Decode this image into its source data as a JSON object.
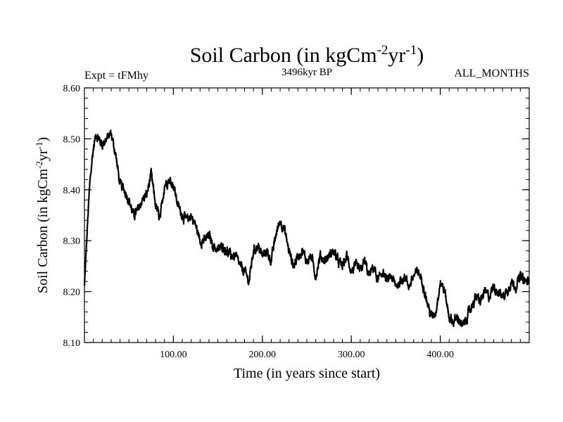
{
  "chart_data": {
    "type": "line",
    "title": "Soil Carbon (in kgCm",
    "title_sup1": "-2",
    "title_mid": "yr",
    "title_sup2": "-1",
    "title_end": ")",
    "subtitle_left": "Expt = tFMhy",
    "subtitle_center": "3496kyr BP",
    "subtitle_right": "ALL_MONTHS",
    "xlabel": "Time (in years since start)",
    "ylabel": "Soil Carbon (in kgCm",
    "ylabel_sup1": "-2",
    "ylabel_mid": "yr",
    "ylabel_sup2": "-1",
    "ylabel_end": ")",
    "xlim": [
      0,
      500
    ],
    "ylim": [
      8.1,
      8.6
    ],
    "xticks": [
      100,
      200,
      300,
      400
    ],
    "xtick_labels": [
      "100.00",
      "200.00",
      "300.00",
      "400.00"
    ],
    "yticks": [
      8.1,
      8.2,
      8.3,
      8.4,
      8.5,
      8.6
    ],
    "ytick_labels": [
      "8.10",
      "8.20",
      "8.30",
      "8.40",
      "8.50",
      "8.60"
    ],
    "line_color": "#000000",
    "series": [
      {
        "name": "Soil Carbon",
        "x": [
          0,
          2,
          4,
          6,
          8,
          10,
          13,
          16,
          20,
          25,
          30,
          35,
          40,
          45,
          50,
          55,
          60,
          65,
          70,
          75,
          80,
          85,
          90,
          95,
          100,
          105,
          110,
          115,
          120,
          125,
          130,
          135,
          140,
          145,
          150,
          155,
          160,
          165,
          170,
          175,
          180,
          185,
          190,
          195,
          200,
          205,
          210,
          215,
          220,
          225,
          230,
          235,
          240,
          245,
          250,
          255,
          260,
          265,
          270,
          275,
          280,
          285,
          290,
          295,
          300,
          305,
          310,
          315,
          320,
          325,
          330,
          335,
          340,
          345,
          350,
          355,
          360,
          365,
          370,
          375,
          380,
          385,
          390,
          395,
          400,
          405,
          410,
          415,
          420,
          425,
          430,
          435,
          440,
          445,
          450,
          455,
          460,
          465,
          470,
          475,
          480,
          485,
          490,
          495,
          500
        ],
        "values": [
          8.21,
          8.28,
          8.35,
          8.41,
          8.45,
          8.48,
          8.51,
          8.5,
          8.49,
          8.5,
          8.51,
          8.47,
          8.41,
          8.4,
          8.38,
          8.35,
          8.36,
          8.38,
          8.39,
          8.43,
          8.37,
          8.34,
          8.41,
          8.42,
          8.41,
          8.37,
          8.35,
          8.34,
          8.35,
          8.33,
          8.3,
          8.3,
          8.31,
          8.29,
          8.28,
          8.29,
          8.28,
          8.27,
          8.27,
          8.25,
          8.24,
          8.22,
          8.28,
          8.29,
          8.27,
          8.28,
          8.26,
          8.31,
          8.34,
          8.32,
          8.28,
          8.25,
          8.27,
          8.28,
          8.26,
          8.27,
          8.23,
          8.27,
          8.26,
          8.27,
          8.28,
          8.26,
          8.25,
          8.27,
          8.24,
          8.25,
          8.24,
          8.26,
          8.23,
          8.25,
          8.22,
          8.24,
          8.22,
          8.23,
          8.21,
          8.22,
          8.23,
          8.21,
          8.23,
          8.24,
          8.22,
          8.18,
          8.15,
          8.16,
          8.22,
          8.2,
          8.15,
          8.14,
          8.15,
          8.13,
          8.15,
          8.17,
          8.19,
          8.18,
          8.2,
          8.19,
          8.21,
          8.2,
          8.19,
          8.2,
          8.22,
          8.21,
          8.23,
          8.22,
          8.22
        ]
      }
    ]
  }
}
